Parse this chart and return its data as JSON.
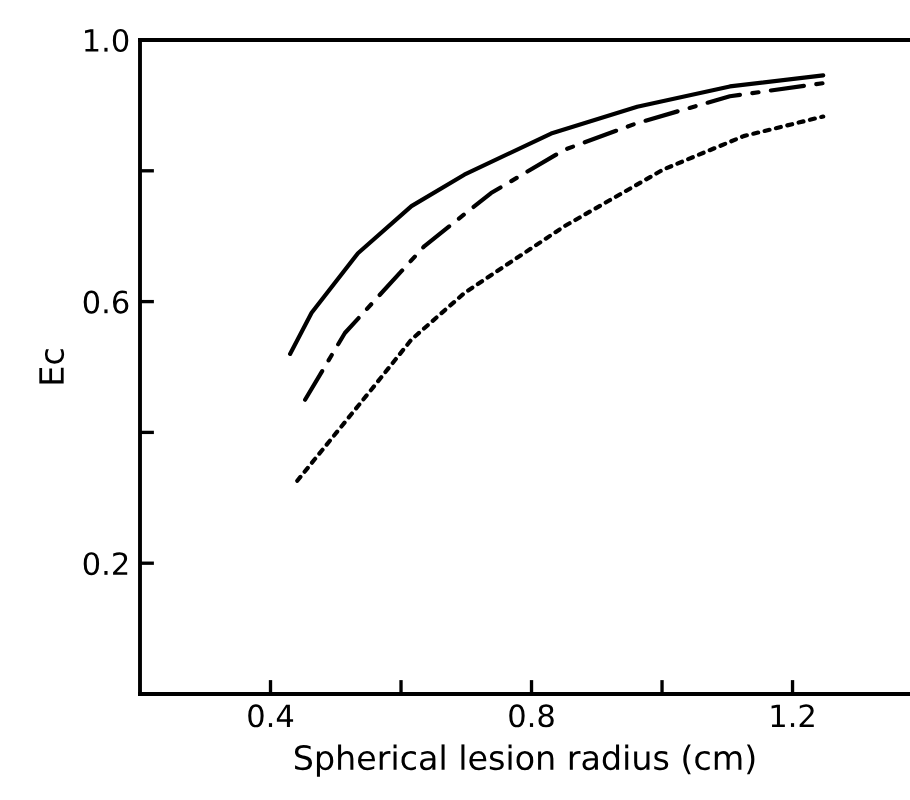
{
  "chart_data": {
    "type": "line",
    "xlabel": "Spherical lesion radius (cm)",
    "ylabel": "Ec",
    "xlim": [
      0.2,
      1.38
    ],
    "ylim": [
      0,
      1.0
    ],
    "xticks": [
      0.4,
      {
        "value": 0.6,
        "label": null
      },
      0.8,
      {
        "value": 1.0,
        "label": null
      },
      1.2
    ],
    "yticks": [
      0.2,
      {
        "value": 0.4,
        "label": null
      },
      0.6,
      {
        "value": 0.8,
        "label": null
      },
      {
        "value": 1.0,
        "label": "1.0"
      }
    ],
    "grid": false,
    "legend": false,
    "marker": "none",
    "series": [
      {
        "color": "#000000",
        "line_style": "solid",
        "x": [
          0.43,
          0.463,
          0.534,
          0.616,
          0.697,
          0.83,
          0.962,
          1.104,
          1.247
        ],
        "values": [
          0.52,
          0.583,
          0.674,
          0.746,
          0.794,
          0.857,
          0.898,
          0.929,
          0.946
        ]
      },
      {
        "color": "#000000",
        "line_style": "dashdot",
        "x": [
          0.453,
          0.514,
          0.636,
          0.738,
          0.85,
          0.962,
          1.104,
          1.247
        ],
        "values": [
          0.45,
          0.552,
          0.685,
          0.766,
          0.832,
          0.873,
          0.914,
          0.934
        ]
      },
      {
        "color": "#000000",
        "line_style": "dotted",
        "x": [
          0.441,
          0.555,
          0.616,
          0.697,
          0.85,
          1.002,
          1.125,
          1.247
        ],
        "values": [
          0.326,
          0.466,
          0.542,
          0.613,
          0.715,
          0.802,
          0.853,
          0.883
        ]
      }
    ]
  }
}
